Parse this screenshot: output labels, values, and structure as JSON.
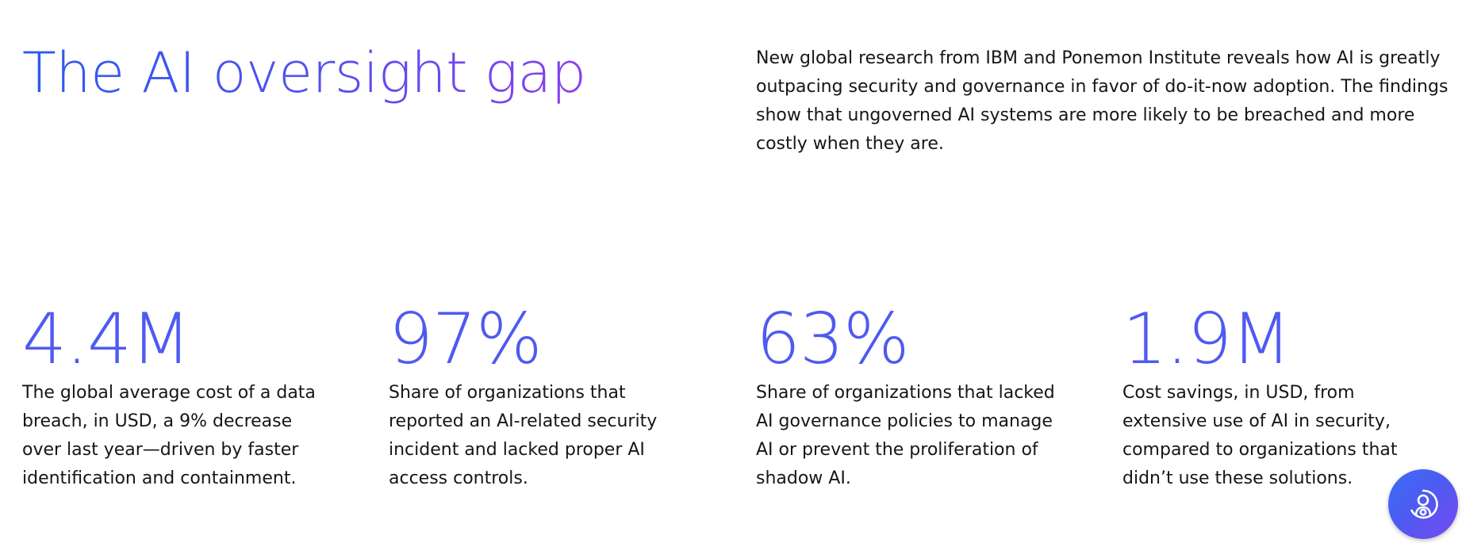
{
  "header": {
    "title": "The AI oversight gap",
    "intro": "New global research from IBM and Ponemon Institute reveals how AI is greatly outpacing security and governance in favor of do-it-now adoption. The findings show that ungoverned AI systems are more likely to be breached and more costly when they are."
  },
  "stats": [
    {
      "value": "4.4M",
      "description": "The global average cost of a data breach, in USD, a 9% decrease over last year—driven by faster identification and containment."
    },
    {
      "value": "97%",
      "description": "Share of organizations that reported an AI-related security incident and lacked proper AI access controls."
    },
    {
      "value": "63%",
      "description": "Share of organizations that lacked AI governance policies to manage AI or prevent the proliferation of shadow AI."
    },
    {
      "value": "1.9M",
      "description": "Cost savings, in USD, from extensive use of AI in security, compared to organizations that didn’t use these solutions."
    }
  ],
  "assistant_button": {
    "icon": "ai-assistant-icon"
  },
  "colors": {
    "headline_start": "#2b5af0",
    "headline_end": "#8a3ff0",
    "stat_value": "#4f5af0",
    "body_text": "#161616",
    "background": "#ffffff"
  }
}
